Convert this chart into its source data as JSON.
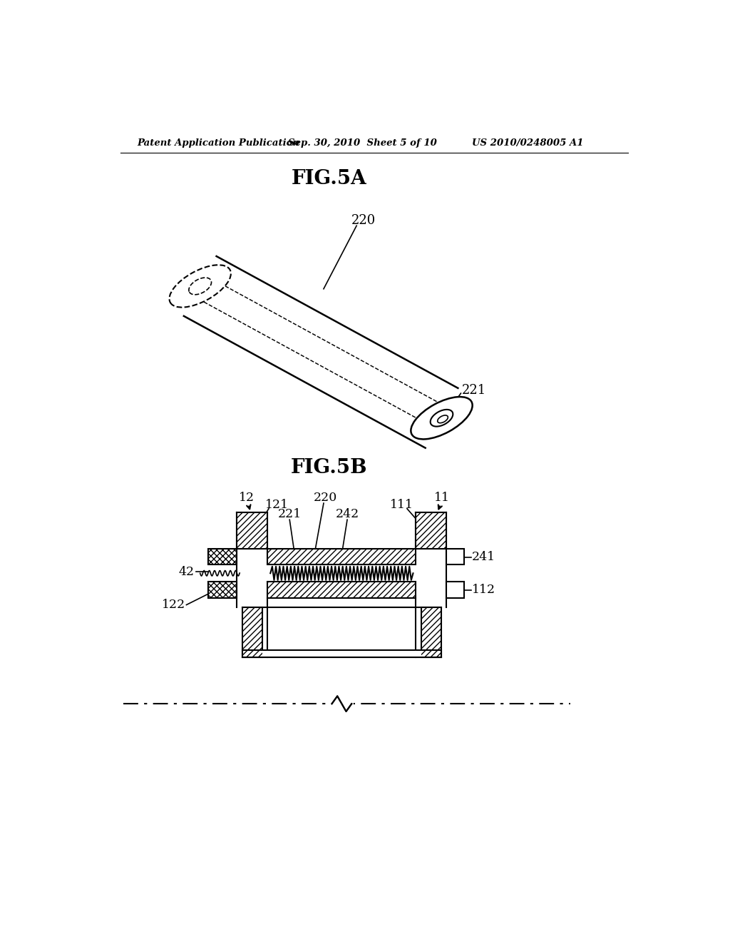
{
  "header_left": "Patent Application Publication",
  "header_mid": "Sep. 30, 2010  Sheet 5 of 10",
  "header_right": "US 2010/0248005 A1",
  "fig5a_title": "FIG.5A",
  "fig5b_title": "FIG.5B",
  "label_220": "220",
  "label_221": "221",
  "label_11": "11",
  "label_12": "12",
  "label_42": "42",
  "label_111": "111",
  "label_112": "112",
  "label_121": "121",
  "label_122": "122",
  "label_220b": "220",
  "label_221b": "221",
  "label_241": "241",
  "label_242": "242",
  "bg_color": "#ffffff",
  "line_color": "#000000"
}
